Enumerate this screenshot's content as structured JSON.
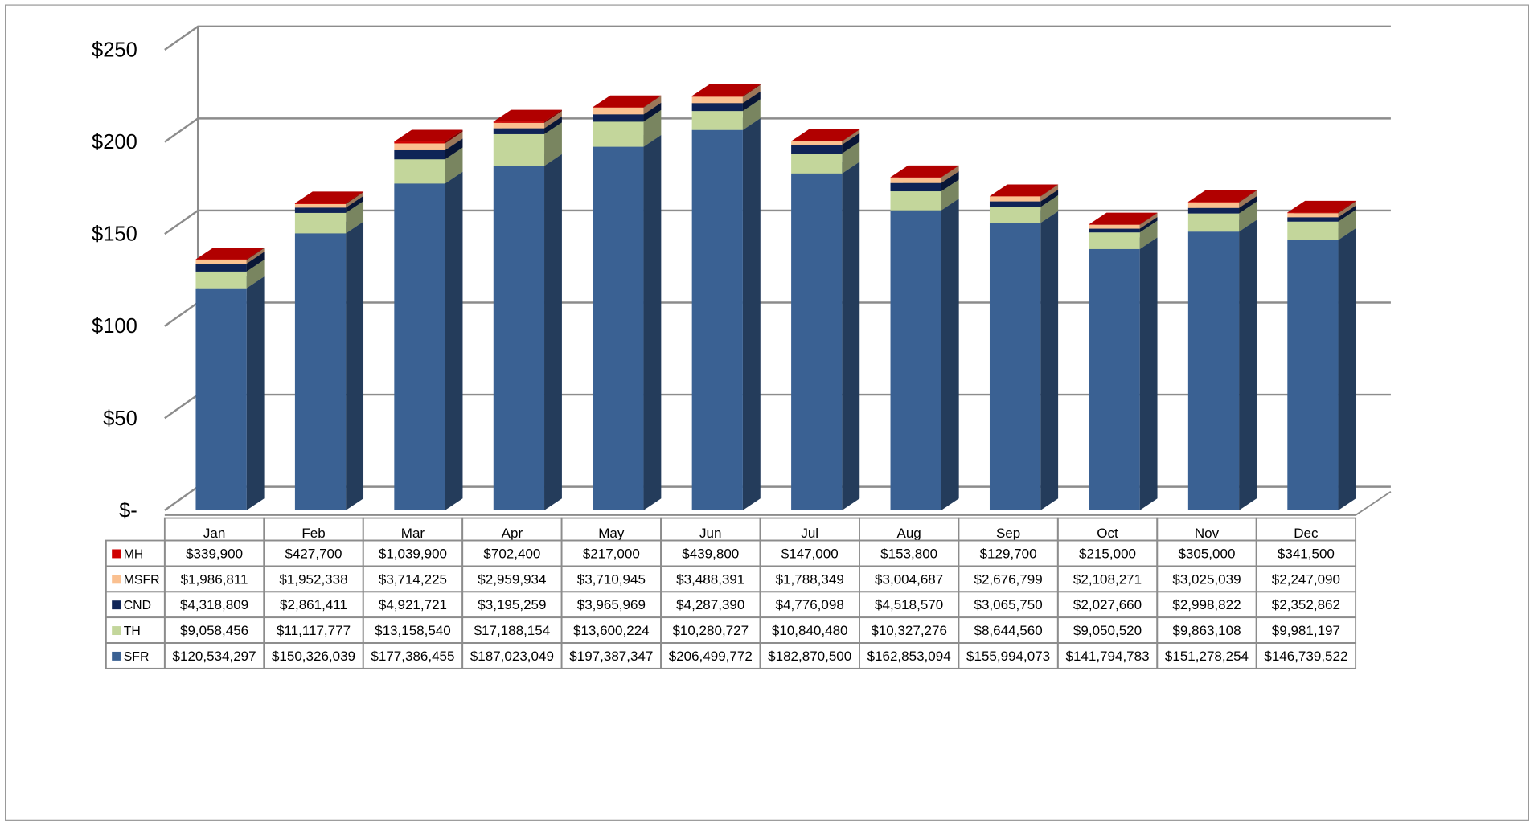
{
  "chart_data": {
    "type": "stacked-bar-3d",
    "categories": [
      "Jan",
      "Feb",
      "Mar",
      "Apr",
      "May",
      "Jun",
      "Jul",
      "Aug",
      "Sep",
      "Oct",
      "Nov",
      "Dec"
    ],
    "ylim": [
      0,
      250
    ],
    "yticks": [
      {
        "value": 0,
        "label": "$-"
      },
      {
        "value": 50,
        "label": "$50"
      },
      {
        "value": 100,
        "label": "$100"
      },
      {
        "value": 150,
        "label": "$150"
      },
      {
        "value": 200,
        "label": "$200"
      },
      {
        "value": 250,
        "label": "$250"
      }
    ],
    "grid": true,
    "series": [
      {
        "name": "SFR",
        "color": "#3a6193",
        "values": [
          120.534297,
          150.326039,
          177.386455,
          187.023049,
          197.387347,
          206.499772,
          182.8705,
          162.853094,
          155.994073,
          141.794783,
          151.278254,
          146.739522
        ],
        "value_labels": [
          "$120,534,297",
          "$150,326,039",
          "$177,386,455",
          "$187,023,049",
          "$197,387,347",
          "$206,499,772",
          "$182,870,500",
          "$162,853,094",
          "$155,994,073",
          "$141,794,783",
          "$151,278,254",
          "$146,739,522"
        ]
      },
      {
        "name": "TH",
        "color": "#c3d69b",
        "values": [
          9.058456,
          11.117777,
          13.15854,
          17.188154,
          13.600224,
          10.280727,
          10.84048,
          10.327276,
          8.64456,
          9.05052,
          9.863108,
          9.981197
        ],
        "value_labels": [
          "$9,058,456",
          "$11,117,777",
          "$13,158,540",
          "$17,188,154",
          "$13,600,224",
          "$10,280,727",
          "$10,840,480",
          "$10,327,276",
          "$8,644,560",
          "$9,050,520",
          "$9,863,108",
          "$9,981,197"
        ]
      },
      {
        "name": "CND",
        "color": "#0f2457",
        "values": [
          4.318809,
          2.861411,
          4.921721,
          3.195259,
          3.965969,
          4.28739,
          4.776098,
          4.51857,
          3.06575,
          2.02766,
          2.998822,
          2.352862
        ],
        "value_labels": [
          "$4,318,809",
          "$2,861,411",
          "$4,921,721",
          "$3,195,259",
          "$3,965,969",
          "$4,287,390",
          "$4,776,098",
          "$4,518,570",
          "$3,065,750",
          "$2,027,660",
          "$2,998,822",
          "$2,352,862"
        ]
      },
      {
        "name": "MSFR",
        "color": "#fac090",
        "values": [
          1.986811,
          1.952338,
          3.714225,
          2.959934,
          3.710945,
          3.488391,
          1.788349,
          3.004687,
          2.676799,
          2.108271,
          3.025039,
          2.24709
        ],
        "value_labels": [
          "$1,986,811",
          "$1,952,338",
          "$3,714,225",
          "$2,959,934",
          "$3,710,945",
          "$3,488,391",
          "$1,788,349",
          "$3,004,687",
          "$2,676,799",
          "$2,108,271",
          "$3,025,039",
          "$2,247,090"
        ]
      },
      {
        "name": "MH",
        "color": "#d00000",
        "values": [
          0.3399,
          0.4277,
          1.0399,
          0.7024,
          0.217,
          0.4398,
          0.147,
          0.1538,
          0.1297,
          0.215,
          0.305,
          0.3415
        ],
        "value_labels": [
          "$339,900",
          "$427,700",
          "$1,039,900",
          "$702,400",
          "$217,000",
          "$439,800",
          "$147,000",
          "$153,800",
          "$129,700",
          "$215,000",
          "$305,000",
          "$341,500"
        ]
      }
    ]
  }
}
